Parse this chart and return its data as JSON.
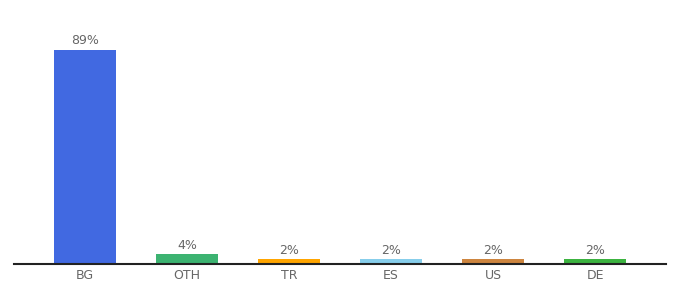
{
  "categories": [
    "BG",
    "OTH",
    "TR",
    "ES",
    "US",
    "DE"
  ],
  "values": [
    89,
    4,
    2,
    2,
    2,
    2
  ],
  "bar_colors": [
    "#4169E1",
    "#3CB371",
    "#FFA500",
    "#87CEEB",
    "#CD853F",
    "#3CB340"
  ],
  "label_texts": [
    "89%",
    "4%",
    "2%",
    "2%",
    "2%",
    "2%"
  ],
  "ylim": [
    0,
    100
  ],
  "background_color": "#ffffff",
  "bar_width": 0.6
}
